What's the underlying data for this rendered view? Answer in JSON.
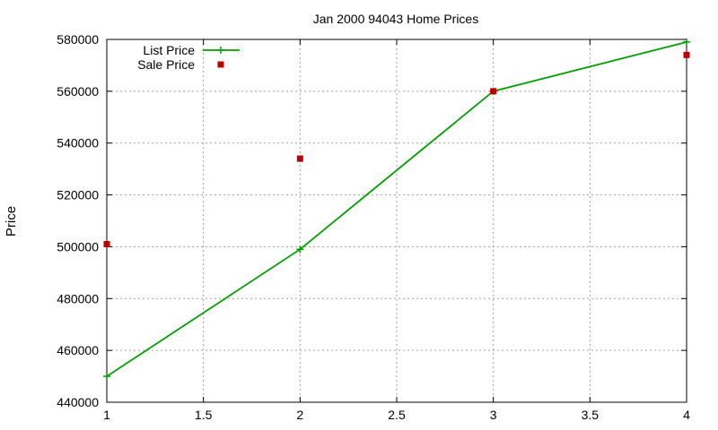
{
  "chart_data": {
    "type": "line",
    "title": "Jan 2000 94043 Home Prices",
    "xlabel": "",
    "ylabel": "Price",
    "x": [
      1,
      2,
      3,
      4
    ],
    "xlim": [
      1,
      4
    ],
    "ylim": [
      440000,
      580000
    ],
    "x_ticks": [
      "1",
      "1.5",
      "2",
      "2.5",
      "3",
      "3.5",
      "4"
    ],
    "y_ticks": [
      "440000",
      "460000",
      "480000",
      "500000",
      "520000",
      "540000",
      "560000",
      "580000"
    ],
    "grid": true,
    "legend_position": "top-left",
    "series": [
      {
        "name": "List Price",
        "style": "line-points",
        "marker": "plus",
        "color": "#00a000",
        "values": [
          450000,
          499000,
          560000,
          579000
        ]
      },
      {
        "name": "Sale Price",
        "style": "points",
        "marker": "square",
        "color": "#c00000",
        "values": [
          501000,
          534000,
          560000,
          574000
        ]
      }
    ]
  }
}
